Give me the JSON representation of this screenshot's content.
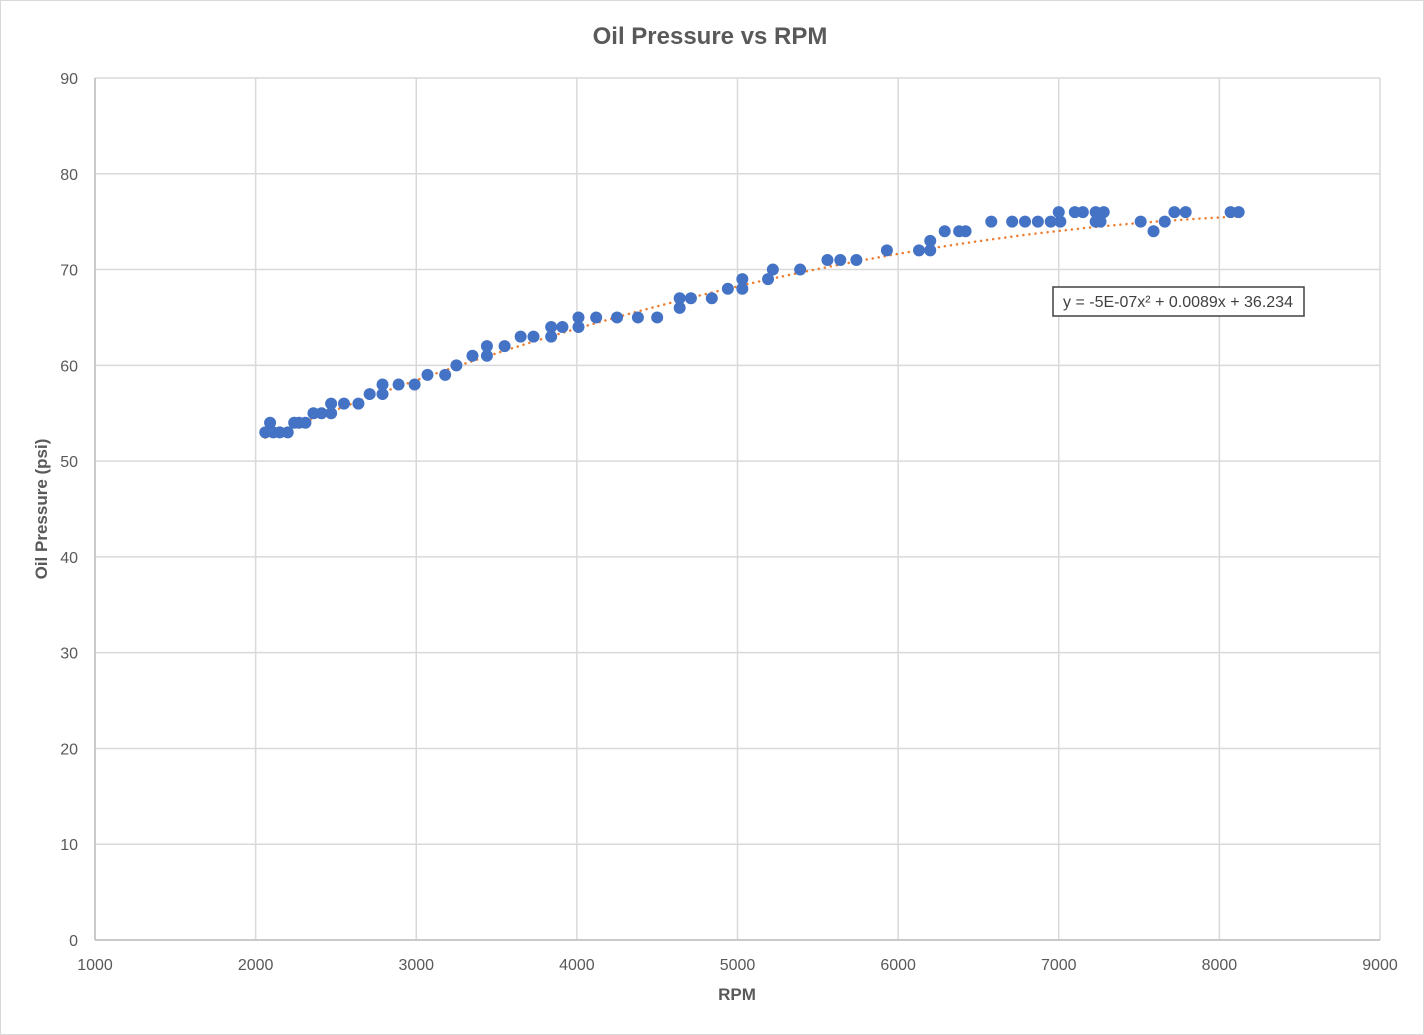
{
  "chart_data": {
    "type": "scatter",
    "title": "Oil Pressure vs RPM",
    "xlabel": "RPM",
    "ylabel": "Oil Pressure (psi)",
    "xlim": [
      1000,
      9000
    ],
    "ylim": [
      0,
      90
    ],
    "xticks": [
      "1000",
      "2000",
      "3000",
      "4000",
      "5000",
      "6000",
      "7000",
      "8000",
      "9000"
    ],
    "yticks": [
      "0",
      "10",
      "20",
      "30",
      "40",
      "50",
      "60",
      "70",
      "80",
      "90"
    ],
    "grid": true,
    "marker_color": "#4472C4",
    "trendline_color": "#ED7D31",
    "trendline": {
      "type": "polynomial",
      "order": 2,
      "coefficients": [
        -5e-07,
        0.0089,
        36.234
      ],
      "equation_label": "y = -5E-07x² + 0.0089x + 36.234"
    },
    "series": [
      {
        "name": "Oil Pressure",
        "points": [
          [
            2060,
            53
          ],
          [
            2090,
            54
          ],
          [
            2110,
            53
          ],
          [
            2150,
            53
          ],
          [
            2200,
            53
          ],
          [
            2240,
            54
          ],
          [
            2270,
            54
          ],
          [
            2310,
            54
          ],
          [
            2360,
            55
          ],
          [
            2410,
            55
          ],
          [
            2470,
            56
          ],
          [
            2470,
            55
          ],
          [
            2550,
            56
          ],
          [
            2640,
            56
          ],
          [
            2710,
            57
          ],
          [
            2790,
            58
          ],
          [
            2790,
            57
          ],
          [
            2890,
            58
          ],
          [
            2990,
            58
          ],
          [
            3070,
            59
          ],
          [
            3180,
            59
          ],
          [
            3250,
            60
          ],
          [
            3350,
            61
          ],
          [
            3440,
            62
          ],
          [
            3440,
            61
          ],
          [
            3550,
            62
          ],
          [
            3650,
            63
          ],
          [
            3730,
            63
          ],
          [
            3840,
            64
          ],
          [
            3840,
            63
          ],
          [
            3910,
            64
          ],
          [
            4010,
            65
          ],
          [
            4010,
            64
          ],
          [
            4120,
            65
          ],
          [
            4250,
            65
          ],
          [
            4380,
            65
          ],
          [
            4500,
            65
          ],
          [
            4640,
            67
          ],
          [
            4640,
            66
          ],
          [
            4710,
            67
          ],
          [
            4840,
            67
          ],
          [
            4940,
            68
          ],
          [
            5030,
            69
          ],
          [
            5030,
            68
          ],
          [
            5190,
            69
          ],
          [
            5220,
            70
          ],
          [
            5390,
            70
          ],
          [
            5560,
            71
          ],
          [
            5640,
            71
          ],
          [
            5740,
            71
          ],
          [
            5930,
            72
          ],
          [
            6130,
            72
          ],
          [
            6200,
            73
          ],
          [
            6200,
            72
          ],
          [
            6290,
            74
          ],
          [
            6380,
            74
          ],
          [
            6420,
            74
          ],
          [
            6580,
            75
          ],
          [
            6710,
            75
          ],
          [
            6790,
            75
          ],
          [
            6870,
            75
          ],
          [
            6950,
            75
          ],
          [
            7000,
            76
          ],
          [
            7010,
            75
          ],
          [
            7100,
            76
          ],
          [
            7150,
            76
          ],
          [
            7230,
            76
          ],
          [
            7230,
            75
          ],
          [
            7260,
            75
          ],
          [
            7280,
            76
          ],
          [
            7510,
            75
          ],
          [
            7590,
            74
          ],
          [
            7660,
            75
          ],
          [
            7720,
            76
          ],
          [
            7790,
            76
          ],
          [
            8070,
            76
          ],
          [
            8120,
            76
          ]
        ]
      }
    ]
  }
}
